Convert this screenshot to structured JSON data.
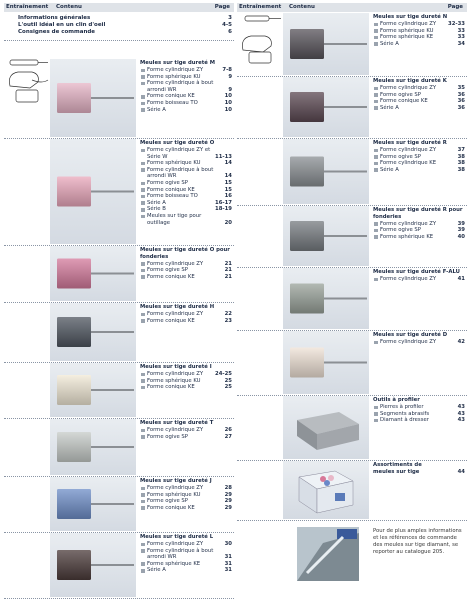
{
  "left": {
    "header": {
      "drive": "Entraînement",
      "content": "Contenu",
      "page": "Page"
    },
    "intro": [
      {
        "text": "Informations générales",
        "page": "3"
      },
      {
        "text": "L'outil idéal en un clin d'oeil",
        "page": "4-5"
      },
      {
        "text": "Consignes de commande",
        "page": "6"
      }
    ],
    "sections": [
      {
        "title": "Meules sur tige dureté M",
        "items": [
          {
            "text": "Forme cylindrique ZY",
            "page": "7-8"
          },
          {
            "text": "Forme sphérique KU",
            "page": "9"
          },
          {
            "text": "Forme cylindrique à bout arrondi WR",
            "page": "9"
          },
          {
            "text": "Forme conique KE",
            "page": "10"
          },
          {
            "text": "Forme boisseau TO",
            "page": "10"
          },
          {
            "text": "Série A",
            "page": "10"
          }
        ]
      },
      {
        "title": "Meules sur tige dureté O",
        "items": [
          {
            "text": "Forme cylindrique ZY et Série W",
            "page": "11-13"
          },
          {
            "text": "Forme sphérique KU",
            "page": "14"
          },
          {
            "text": "Forme cylindrique à bout arrondi WR",
            "page": "14"
          },
          {
            "text": "Forme ogive SP",
            "page": "15"
          },
          {
            "text": "Forme conique KE",
            "page": "15"
          },
          {
            "text": "Forme boisseau TO",
            "page": "16"
          },
          {
            "text": "Série A",
            "page": "16-17"
          },
          {
            "text": "Série B",
            "page": "18-19"
          },
          {
            "text": "Meules sur tige pour outillage",
            "page": "20"
          }
        ]
      },
      {
        "title": "Meules sur tige dureté O pour fonderies",
        "items": [
          {
            "text": "Forme cylindrique ZY",
            "page": "21"
          },
          {
            "text": "Forme ogive SP",
            "page": "21"
          },
          {
            "text": "Forme conique KE",
            "page": "21"
          }
        ]
      },
      {
        "title": "Meules sur tige dureté H",
        "items": [
          {
            "text": "Forme cylindrique ZY",
            "page": "22"
          },
          {
            "text": "Forme conique KE",
            "page": "23"
          }
        ]
      },
      {
        "title": "Meules sur tige dureté I",
        "items": [
          {
            "text": "Forme cylindrique ZY",
            "page": "24-25"
          },
          {
            "text": "Forme sphérique KU",
            "page": "25"
          },
          {
            "text": "Forme conique KE",
            "page": "25"
          }
        ]
      },
      {
        "title": "Meules sur tige dureté T",
        "items": [
          {
            "text": "Forme cylindrique ZY",
            "page": "26"
          },
          {
            "text": "Forme ogive SP",
            "page": "27"
          }
        ]
      },
      {
        "title": "Meules sur tige dureté J",
        "items": [
          {
            "text": "Forme cylindrique ZY",
            "page": "28"
          },
          {
            "text": "Forme sphérique KU",
            "page": "29"
          },
          {
            "text": "Forme ogive SP",
            "page": "29"
          },
          {
            "text": "Forme conique KE",
            "page": "29"
          }
        ]
      },
      {
        "title": "Meules sur tige dureté L",
        "items": [
          {
            "text": "Forme cylindrique ZY",
            "page": "30"
          },
          {
            "text": "Forme cylindrique à bout arrondi WR",
            "page": "31"
          },
          {
            "text": "Forme sphérique KE",
            "page": "31"
          },
          {
            "text": "Série A",
            "page": "31"
          }
        ]
      }
    ]
  },
  "right": {
    "header": {
      "drive": "Entraînement",
      "content": "Contenu",
      "page": "Page"
    },
    "sections": [
      {
        "title": "Meules sur tige dureté N",
        "items": [
          {
            "text": "Forme cylindrique ZY",
            "page": "32-33"
          },
          {
            "text": "Forme sphérique KU",
            "page": "33"
          },
          {
            "text": "Forme sphérique KE",
            "page": "33"
          },
          {
            "text": "Série A",
            "page": "34"
          }
        ]
      },
      {
        "title": "Meules sur tige dureté K",
        "items": [
          {
            "text": "Forme cylindrique ZY",
            "page": "35"
          },
          {
            "text": "Forme ogive SP",
            "page": "36"
          },
          {
            "text": "Forme conique KE",
            "page": "36"
          },
          {
            "text": "Série A",
            "page": "36"
          }
        ]
      },
      {
        "title": "Meules sur tige dureté R",
        "items": [
          {
            "text": "Forme cylindrique ZY",
            "page": "37"
          },
          {
            "text": "Forme ogive SP",
            "page": "38"
          },
          {
            "text": "Forme cylindrique KE",
            "page": "38"
          },
          {
            "text": "Série A",
            "page": "38"
          }
        ]
      },
      {
        "title": "Meules sur tige dureté R pour fonderies",
        "items": [
          {
            "text": "Forme cylindrique ZY",
            "page": "39"
          },
          {
            "text": "Forme ogive SP",
            "page": "39"
          },
          {
            "text": "Forme sphérique KE",
            "page": "40"
          }
        ]
      },
      {
        "title": "Meules sur tige dureté F-ALU",
        "items": [
          {
            "text": "Forme cylindrique ZY",
            "page": "41"
          }
        ]
      },
      {
        "title": "Meules sur tige dureté D",
        "items": [
          {
            "text": "Forme cylindrique ZY",
            "page": "42"
          }
        ]
      },
      {
        "title": "Outils à profiler",
        "items": [
          {
            "text": "Pierres à profiler",
            "page": "43"
          },
          {
            "text": "Segments abrasifs",
            "page": "43"
          },
          {
            "text": "Diamant à dresser",
            "page": "43"
          }
        ]
      },
      {
        "title": "Assortiments de meules sur tige",
        "items": [],
        "page": "44"
      }
    ],
    "note": "Pour de plus amples informations et les références de commande des meules sur tige diamant, se reporter au catalogue 205."
  }
}
